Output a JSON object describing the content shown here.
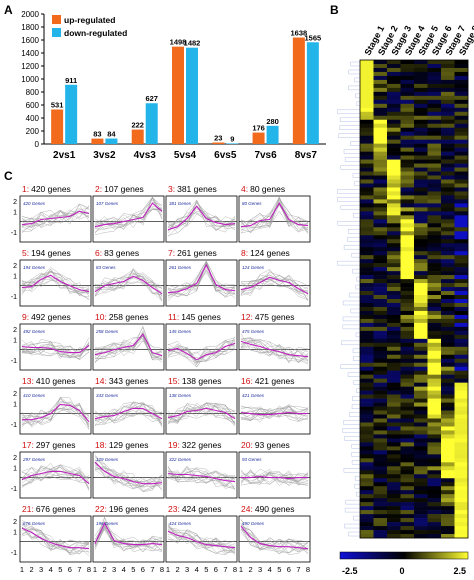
{
  "panels": {
    "a": "A",
    "b": "B",
    "c": "C"
  },
  "chart_data": [
    {
      "type": "bar",
      "categories": [
        "2vs1",
        "3vs2",
        "4vs3",
        "5vs4",
        "6vs5",
        "7vs6",
        "8vs7"
      ],
      "series": [
        {
          "name": "up-regulated",
          "color": "#f26b1d",
          "values": [
            531,
            83,
            222,
            1498,
            23,
            176,
            1638
          ]
        },
        {
          "name": "down-regulated",
          "color": "#23b5ea",
          "values": [
            911,
            84,
            627,
            1482,
            9,
            280,
            1565
          ]
        }
      ],
      "ylim": [
        0,
        2000
      ],
      "yticks": [
        0,
        200,
        400,
        600,
        800,
        1000,
        1200,
        1400,
        1600,
        1800,
        2000
      ],
      "legend": "top-left",
      "grid": false
    },
    {
      "type": "heatmap",
      "columns": [
        "Stage 1",
        "Stage 2",
        "Stage 3",
        "Stage 4",
        "Stage 5",
        "Stage 6",
        "Stage 7",
        "Stage 8"
      ],
      "colorbar": {
        "min": "-2.5",
        "mid": "0",
        "max": "2.5",
        "low_color": "#1010d8",
        "mid_color": "#000000",
        "high_color": "#ffff33"
      },
      "dendrogram": "left"
    },
    {
      "type": "line",
      "layout": "6 rows x 4 columns of small multiples",
      "x": [
        1,
        2,
        3,
        4,
        5,
        6,
        7,
        8
      ],
      "xticks": [
        "1",
        "2",
        "3",
        "4",
        "5",
        "6",
        "7",
        "8"
      ],
      "yticks": [
        "2",
        "1",
        "-1"
      ],
      "ylim": [
        -2,
        2.5
      ],
      "line_color": "#9a9a9a",
      "mean_color": "#c020c0",
      "clusters": [
        {
          "id": "1:",
          "label": "420 genes",
          "inner": "420 Genes",
          "mean": [
            -0.3,
            -0.2,
            0.2,
            0.3,
            0.4,
            0.5,
            1.0,
            0.8
          ]
        },
        {
          "id": "2:",
          "label": "107 genes",
          "inner": "107 Genes",
          "mean": [
            -0.5,
            -0.3,
            -0.2,
            0.0,
            0.2,
            0.4,
            1.8,
            1.0
          ]
        },
        {
          "id": "3:",
          "label": "381 genes",
          "inner": "381 Genes",
          "mean": [
            -0.8,
            -0.5,
            0.3,
            1.5,
            0.3,
            -0.1,
            -0.3,
            -0.2
          ]
        },
        {
          "id": "4:",
          "label": "80 genes",
          "inner": "80 Genes",
          "mean": [
            -0.5,
            -0.4,
            0.1,
            0.2,
            1.8,
            0.2,
            -0.3,
            -0.4
          ]
        },
        {
          "id": "5:",
          "label": "194 genes",
          "inner": "194 Genes",
          "mean": [
            -0.2,
            -0.1,
            0.6,
            1.0,
            0.4,
            0.0,
            -0.4,
            -0.6
          ]
        },
        {
          "id": "6:",
          "label": "83 genes",
          "inner": "83 Genes",
          "mean": [
            -0.6,
            0.0,
            0.2,
            0.4,
            0.9,
            0.5,
            -0.2,
            -0.8
          ]
        },
        {
          "id": "7:",
          "label": "261 genes",
          "inner": "261 Genes",
          "mean": [
            -0.7,
            -0.6,
            -0.3,
            0.2,
            2.0,
            0.1,
            -0.4,
            -0.5
          ]
        },
        {
          "id": "8:",
          "label": "124 genes",
          "inner": "124 Genes",
          "mean": [
            -0.4,
            -0.2,
            0.3,
            0.8,
            0.5,
            0.3,
            -0.3,
            -0.8
          ]
        },
        {
          "id": "9:",
          "label": "492 genes",
          "inner": "492 Genes",
          "mean": [
            0.3,
            0.2,
            0.2,
            0.1,
            -0.2,
            -0.3,
            -0.3,
            0.4
          ]
        },
        {
          "id": "10:",
          "label": "258 genes",
          "inner": "258 Genes",
          "mean": [
            -0.5,
            -0.3,
            0.0,
            0.2,
            0.4,
            1.5,
            -0.3,
            -0.6
          ]
        },
        {
          "id": "11:",
          "label": "145 genes",
          "inner": "145 Genes",
          "mean": [
            -0.1,
            0.1,
            -0.4,
            -1.0,
            -0.5,
            -0.3,
            0.3,
            0.6
          ]
        },
        {
          "id": "12:",
          "label": "475 genes",
          "inner": "475 Genes",
          "mean": [
            0.8,
            0.5,
            0.3,
            0.0,
            -0.2,
            -0.5,
            -0.6,
            -0.7
          ]
        },
        {
          "id": "13:",
          "label": "410 genes",
          "inner": "410 Genes",
          "mean": [
            -0.6,
            -0.6,
            -0.4,
            0.0,
            0.9,
            0.8,
            0.3,
            -0.8
          ]
        },
        {
          "id": "14:",
          "label": "343 genes",
          "inner": "343 Genes",
          "mean": [
            -0.5,
            -0.3,
            -0.2,
            0.2,
            0.5,
            0.5,
            0.0,
            -0.5
          ]
        },
        {
          "id": "15:",
          "label": "138 genes",
          "inner": "138 Genes",
          "mean": [
            -0.4,
            -0.2,
            0.2,
            0.3,
            0.5,
            0.3,
            0.1,
            -0.5
          ]
        },
        {
          "id": "16:",
          "label": "421 genes",
          "inner": "421 Genes",
          "mean": [
            0.1,
            0.0,
            -0.1,
            -0.1,
            0.0,
            0.1,
            0.0,
            0.0
          ]
        },
        {
          "id": "17:",
          "label": "297 genes",
          "inner": "297 Genes",
          "mean": [
            -0.2,
            0.2,
            0.4,
            0.6,
            0.6,
            0.4,
            0.2,
            -0.6
          ]
        },
        {
          "id": "18:",
          "label": "129 genes",
          "inner": "129 Genes",
          "mean": [
            1.5,
            0.6,
            0.1,
            -0.1,
            -0.4,
            -0.6,
            -0.6,
            -0.5
          ]
        },
        {
          "id": "19:",
          "label": "322 genes",
          "inner": "322 Genes",
          "mean": [
            0.4,
            0.3,
            0.3,
            0.2,
            0.1,
            -0.1,
            -0.3,
            -0.4
          ]
        },
        {
          "id": "20:",
          "label": "93 genes",
          "inner": "93 Genes",
          "mean": [
            0.0,
            0.0,
            0.1,
            0.0,
            0.0,
            -0.1,
            0.0,
            0.0
          ]
        },
        {
          "id": "21:",
          "label": "676 genes",
          "inner": "676 Genes",
          "mean": [
            1.3,
            0.9,
            0.3,
            -0.1,
            -0.4,
            -0.6,
            -0.6,
            -0.7
          ]
        },
        {
          "id": "22:",
          "label": "196 genes",
          "inner": "196 Genes",
          "mean": [
            -0.2,
            1.8,
            0.1,
            -0.2,
            -0.3,
            -0.3,
            -0.2,
            -0.3
          ]
        },
        {
          "id": "23:",
          "label": "424 genes",
          "inner": "424 Genes",
          "mean": [
            1.0,
            0.6,
            0.4,
            0.0,
            -0.3,
            -0.4,
            -0.5,
            -0.6
          ]
        },
        {
          "id": "24:",
          "label": "490 genes",
          "inner": "490 Genes",
          "mean": [
            1.5,
            0.4,
            -0.2,
            -0.4,
            -0.5,
            -0.5,
            -0.6,
            -0.7
          ]
        }
      ]
    }
  ]
}
